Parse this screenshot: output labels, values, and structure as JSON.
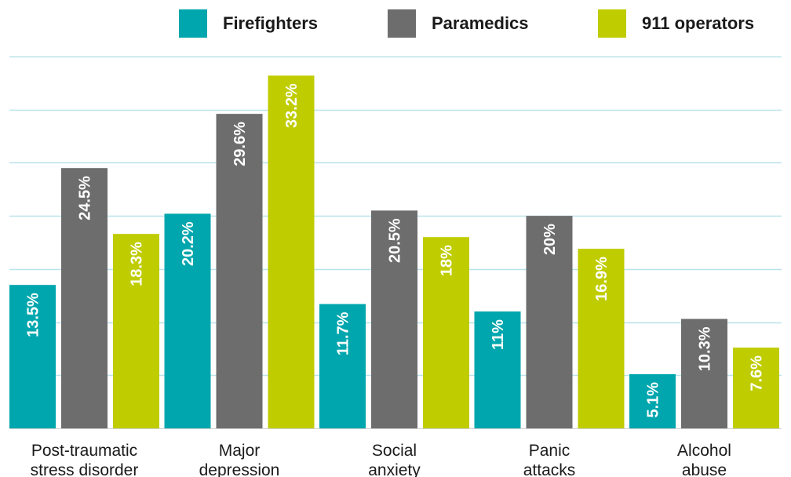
{
  "colors": {
    "Firefighters": "#00a6ad",
    "Paramedics": "#6d6d6d",
    "911 operators": "#bfcc00",
    "gridline": "#b9e3ea",
    "baseline": "#cfcfcf",
    "label_text": "#ffffff",
    "category_text": "#1a1a1a"
  },
  "chart_data": {
    "type": "bar",
    "categories": [
      [
        "Post-traumatic",
        "stress disorder"
      ],
      [
        "Major",
        "depression"
      ],
      [
        "Social",
        "anxiety"
      ],
      [
        "Panic",
        "attacks"
      ],
      [
        "Alcohol",
        "abuse"
      ]
    ],
    "series": [
      {
        "name": "Firefighters",
        "values": [
          13.5,
          20.2,
          11.7,
          11,
          5.1
        ],
        "labels": [
          "13.5%",
          "20.2%",
          "11.7%",
          "11%",
          "5.1%"
        ]
      },
      {
        "name": "Paramedics",
        "values": [
          24.5,
          29.6,
          20.5,
          20,
          10.3
        ],
        "labels": [
          "24.5%",
          "29.6%",
          "20.5%",
          "20%",
          "10.3%"
        ]
      },
      {
        "name": "911 operators",
        "values": [
          18.3,
          33.2,
          18,
          16.9,
          7.6
        ],
        "labels": [
          "18.3%",
          "33.2%",
          "18%",
          "16.9%",
          "7.6%"
        ]
      }
    ],
    "ylim": [
      0,
      35
    ],
    "gridlines": [
      5,
      10,
      15,
      20,
      25,
      30,
      35
    ],
    "y_tick_labels_shown": false,
    "legend_position": "top"
  }
}
